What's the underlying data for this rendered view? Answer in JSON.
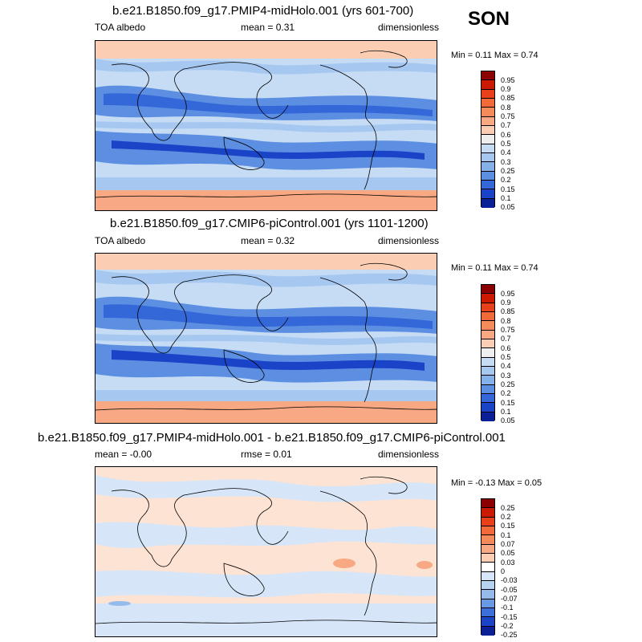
{
  "season": "SON",
  "chart_data": [
    {
      "type": "heatmap",
      "title": "b.e21.B1850.f09_g17.PMIP4-midHolo.001 (yrs 601-700)",
      "left_label": "TOA albedo",
      "center_label": "mean =  0.31",
      "right_label": "dimensionless",
      "minmax": "Min =  0.11 Max =  0.74",
      "colorbar_labels": [
        "0.95",
        "0.9",
        "0.85",
        "0.8",
        "0.75",
        "0.7",
        "0.6",
        "0.5",
        "0.4",
        "0.3",
        "0.25",
        "0.2",
        "0.15",
        "0.1",
        "0.05"
      ],
      "colorbar_colors": [
        "#8b0000",
        "#cc1a00",
        "#e8401a",
        "#f26a3a",
        "#f58a5a",
        "#f8a882",
        "#fbcdb2",
        "#eeeeee",
        "#c6dcf5",
        "#a6c8f0",
        "#85b1eb",
        "#5c8fe2",
        "#3468d8",
        "#1a44c8",
        "#0b1f96"
      ],
      "min": 0.11,
      "max": 0.74,
      "mean": 0.31
    },
    {
      "type": "heatmap",
      "title": "b.e21.B1850.f09_g17.CMIP6-piControl.001 (yrs 1101-1200)",
      "left_label": "TOA albedo",
      "center_label": "mean =  0.32",
      "right_label": "dimensionless",
      "minmax": "Min =  0.11 Max =  0.74",
      "colorbar_labels": [
        "0.95",
        "0.9",
        "0.85",
        "0.8",
        "0.75",
        "0.7",
        "0.6",
        "0.5",
        "0.4",
        "0.3",
        "0.25",
        "0.2",
        "0.15",
        "0.1",
        "0.05"
      ],
      "colorbar_colors": [
        "#8b0000",
        "#cc1a00",
        "#e8401a",
        "#f26a3a",
        "#f58a5a",
        "#f8a882",
        "#fbcdb2",
        "#eeeeee",
        "#c6dcf5",
        "#a6c8f0",
        "#85b1eb",
        "#5c8fe2",
        "#3468d8",
        "#1a44c8",
        "#0b1f96"
      ],
      "min": 0.11,
      "max": 0.74,
      "mean": 0.32
    },
    {
      "type": "heatmap",
      "title": "b.e21.B1850.f09_g17.PMIP4-midHolo.001 - b.e21.B1850.f09_g17.CMIP6-piControl.001",
      "left_label": "mean =  -0.00",
      "center_label": "rmse =  0.01",
      "right_label": "dimensionless",
      "minmax": "Min =  -0.13 Max =   0.05",
      "colorbar_labels": [
        "0.25",
        "0.2",
        "0.15",
        "0.1",
        "0.07",
        "0.05",
        "0.03",
        "0",
        "-0.03",
        "-0.05",
        "-0.07",
        "-0.1",
        "-0.15",
        "-0.2",
        "-0.25"
      ],
      "colorbar_colors": [
        "#8b0000",
        "#cc1a00",
        "#e8401a",
        "#f26a3a",
        "#f58a5a",
        "#f8a882",
        "#fbcdb2",
        "#ffffff",
        "#d6e6f8",
        "#b8d2f2",
        "#95bbed",
        "#6a99e4",
        "#3c6fd9",
        "#1b45c6",
        "#0b1f96"
      ],
      "min": -0.13,
      "max": 0.05,
      "mean": -0.0,
      "rmse": 0.01
    }
  ]
}
